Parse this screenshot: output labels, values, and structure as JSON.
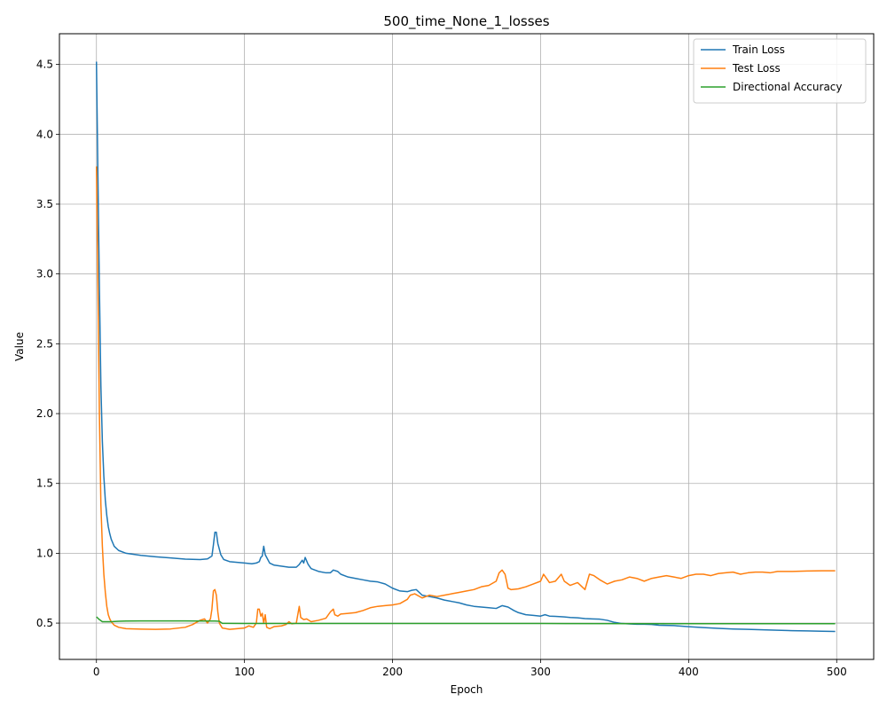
{
  "chart_data": {
    "type": "line",
    "title": "500_time_None_1_losses",
    "xlabel": "Epoch",
    "ylabel": "Value",
    "xlim": [
      -25,
      525
    ],
    "ylim": [
      0.24,
      4.72
    ],
    "x_ticks": [
      0,
      100,
      200,
      300,
      400,
      500
    ],
    "y_ticks": [
      0.5,
      1.0,
      1.5,
      2.0,
      2.5,
      3.0,
      3.5,
      4.0,
      4.5
    ],
    "grid": true,
    "legend_position": "top-right",
    "series": [
      {
        "name": "Train Loss",
        "color": "#1f77b4",
        "points": [
          [
            0,
            4.52
          ],
          [
            1,
            3.7
          ],
          [
            2,
            2.9
          ],
          [
            3,
            2.2
          ],
          [
            4,
            1.8
          ],
          [
            5,
            1.55
          ],
          [
            6,
            1.38
          ],
          [
            7,
            1.27
          ],
          [
            8,
            1.19
          ],
          [
            9,
            1.14
          ],
          [
            10,
            1.1
          ],
          [
            12,
            1.05
          ],
          [
            15,
            1.02
          ],
          [
            20,
            1.0
          ],
          [
            30,
            0.985
          ],
          [
            40,
            0.975
          ],
          [
            50,
            0.967
          ],
          [
            60,
            0.958
          ],
          [
            70,
            0.955
          ],
          [
            75,
            0.96
          ],
          [
            78,
            0.98
          ],
          [
            79,
            1.06
          ],
          [
            80,
            1.15
          ],
          [
            81,
            1.15
          ],
          [
            82,
            1.07
          ],
          [
            84,
            0.99
          ],
          [
            86,
            0.955
          ],
          [
            90,
            0.94
          ],
          [
            100,
            0.93
          ],
          [
            105,
            0.925
          ],
          [
            108,
            0.93
          ],
          [
            110,
            0.94
          ],
          [
            111,
            0.97
          ],
          [
            112,
            0.98
          ],
          [
            113,
            1.05
          ],
          [
            114,
            0.99
          ],
          [
            115,
            0.97
          ],
          [
            117,
            0.93
          ],
          [
            120,
            0.915
          ],
          [
            130,
            0.9
          ],
          [
            135,
            0.9
          ],
          [
            137,
            0.92
          ],
          [
            139,
            0.95
          ],
          [
            140,
            0.93
          ],
          [
            141,
            0.97
          ],
          [
            143,
            0.92
          ],
          [
            145,
            0.89
          ],
          [
            150,
            0.87
          ],
          [
            155,
            0.86
          ],
          [
            158,
            0.86
          ],
          [
            160,
            0.88
          ],
          [
            163,
            0.87
          ],
          [
            165,
            0.85
          ],
          [
            170,
            0.83
          ],
          [
            175,
            0.82
          ],
          [
            180,
            0.81
          ],
          [
            185,
            0.8
          ],
          [
            190,
            0.795
          ],
          [
            195,
            0.78
          ],
          [
            200,
            0.75
          ],
          [
            205,
            0.73
          ],
          [
            210,
            0.725
          ],
          [
            213,
            0.735
          ],
          [
            216,
            0.74
          ],
          [
            220,
            0.7
          ],
          [
            225,
            0.69
          ],
          [
            230,
            0.68
          ],
          [
            235,
            0.665
          ],
          [
            240,
            0.655
          ],
          [
            245,
            0.645
          ],
          [
            250,
            0.63
          ],
          [
            255,
            0.62
          ],
          [
            260,
            0.615
          ],
          [
            265,
            0.61
          ],
          [
            270,
            0.605
          ],
          [
            274,
            0.625
          ],
          [
            278,
            0.615
          ],
          [
            282,
            0.59
          ],
          [
            285,
            0.575
          ],
          [
            290,
            0.56
          ],
          [
            295,
            0.555
          ],
          [
            300,
            0.55
          ],
          [
            303,
            0.56
          ],
          [
            306,
            0.55
          ],
          [
            310,
            0.548
          ],
          [
            315,
            0.545
          ],
          [
            320,
            0.54
          ],
          [
            325,
            0.538
          ],
          [
            330,
            0.532
          ],
          [
            335,
            0.53
          ],
          [
            340,
            0.528
          ],
          [
            345,
            0.52
          ],
          [
            350,
            0.505
          ],
          [
            355,
            0.497
          ],
          [
            360,
            0.494
          ],
          [
            365,
            0.492
          ],
          [
            370,
            0.492
          ],
          [
            375,
            0.49
          ],
          [
            380,
            0.485
          ],
          [
            390,
            0.482
          ],
          [
            395,
            0.478
          ],
          [
            400,
            0.474
          ],
          [
            410,
            0.468
          ],
          [
            420,
            0.462
          ],
          [
            430,
            0.458
          ],
          [
            440,
            0.455
          ],
          [
            450,
            0.452
          ],
          [
            460,
            0.449
          ],
          [
            470,
            0.446
          ],
          [
            480,
            0.444
          ],
          [
            490,
            0.442
          ],
          [
            499,
            0.44
          ]
        ]
      },
      {
        "name": "Test Loss",
        "color": "#ff7f0e",
        "points": [
          [
            0,
            3.77
          ],
          [
            1,
            2.9
          ],
          [
            2,
            2.0
          ],
          [
            3,
            1.35
          ],
          [
            4,
            1.05
          ],
          [
            5,
            0.85
          ],
          [
            6,
            0.72
          ],
          [
            7,
            0.62
          ],
          [
            8,
            0.56
          ],
          [
            9,
            0.53
          ],
          [
            10,
            0.51
          ],
          [
            12,
            0.485
          ],
          [
            15,
            0.47
          ],
          [
            20,
            0.46
          ],
          [
            30,
            0.457
          ],
          [
            40,
            0.455
          ],
          [
            50,
            0.458
          ],
          [
            60,
            0.47
          ],
          [
            65,
            0.49
          ],
          [
            70,
            0.52
          ],
          [
            73,
            0.53
          ],
          [
            75,
            0.5
          ],
          [
            77,
            0.53
          ],
          [
            78,
            0.6
          ],
          [
            79,
            0.73
          ],
          [
            80,
            0.74
          ],
          [
            81,
            0.7
          ],
          [
            82,
            0.58
          ],
          [
            83,
            0.5
          ],
          [
            85,
            0.465
          ],
          [
            90,
            0.455
          ],
          [
            95,
            0.46
          ],
          [
            100,
            0.465
          ],
          [
            103,
            0.48
          ],
          [
            106,
            0.47
          ],
          [
            108,
            0.5
          ],
          [
            109,
            0.6
          ],
          [
            110,
            0.6
          ],
          [
            111,
            0.55
          ],
          [
            112,
            0.57
          ],
          [
            113,
            0.5
          ],
          [
            114,
            0.56
          ],
          [
            115,
            0.47
          ],
          [
            117,
            0.46
          ],
          [
            120,
            0.475
          ],
          [
            125,
            0.48
          ],
          [
            128,
            0.49
          ],
          [
            130,
            0.51
          ],
          [
            132,
            0.495
          ],
          [
            135,
            0.5
          ],
          [
            137,
            0.62
          ],
          [
            138,
            0.54
          ],
          [
            140,
            0.525
          ],
          [
            142,
            0.53
          ],
          [
            145,
            0.51
          ],
          [
            150,
            0.52
          ],
          [
            155,
            0.535
          ],
          [
            158,
            0.58
          ],
          [
            160,
            0.6
          ],
          [
            161,
            0.56
          ],
          [
            163,
            0.55
          ],
          [
            165,
            0.565
          ],
          [
            170,
            0.57
          ],
          [
            175,
            0.575
          ],
          [
            180,
            0.59
          ],
          [
            185,
            0.61
          ],
          [
            190,
            0.62
          ],
          [
            195,
            0.625
          ],
          [
            200,
            0.63
          ],
          [
            205,
            0.64
          ],
          [
            210,
            0.67
          ],
          [
            212,
            0.7
          ],
          [
            215,
            0.71
          ],
          [
            220,
            0.68
          ],
          [
            225,
            0.7
          ],
          [
            230,
            0.69
          ],
          [
            235,
            0.7
          ],
          [
            240,
            0.71
          ],
          [
            245,
            0.72
          ],
          [
            250,
            0.73
          ],
          [
            255,
            0.74
          ],
          [
            260,
            0.76
          ],
          [
            265,
            0.77
          ],
          [
            270,
            0.8
          ],
          [
            272,
            0.86
          ],
          [
            274,
            0.88
          ],
          [
            276,
            0.85
          ],
          [
            278,
            0.75
          ],
          [
            280,
            0.74
          ],
          [
            285,
            0.745
          ],
          [
            290,
            0.76
          ],
          [
            295,
            0.78
          ],
          [
            300,
            0.8
          ],
          [
            302,
            0.85
          ],
          [
            304,
            0.82
          ],
          [
            306,
            0.79
          ],
          [
            310,
            0.8
          ],
          [
            314,
            0.85
          ],
          [
            316,
            0.8
          ],
          [
            320,
            0.77
          ],
          [
            325,
            0.79
          ],
          [
            330,
            0.74
          ],
          [
            333,
            0.85
          ],
          [
            336,
            0.84
          ],
          [
            340,
            0.81
          ],
          [
            345,
            0.78
          ],
          [
            350,
            0.8
          ],
          [
            355,
            0.81
          ],
          [
            360,
            0.83
          ],
          [
            365,
            0.82
          ],
          [
            370,
            0.8
          ],
          [
            375,
            0.82
          ],
          [
            380,
            0.83
          ],
          [
            385,
            0.84
          ],
          [
            390,
            0.83
          ],
          [
            395,
            0.82
          ],
          [
            400,
            0.84
          ],
          [
            405,
            0.85
          ],
          [
            410,
            0.85
          ],
          [
            415,
            0.84
          ],
          [
            420,
            0.855
          ],
          [
            425,
            0.86
          ],
          [
            430,
            0.865
          ],
          [
            435,
            0.85
          ],
          [
            440,
            0.86
          ],
          [
            445,
            0.865
          ],
          [
            450,
            0.865
          ],
          [
            455,
            0.86
          ],
          [
            460,
            0.87
          ],
          [
            470,
            0.87
          ],
          [
            480,
            0.873
          ],
          [
            490,
            0.875
          ],
          [
            499,
            0.875
          ]
        ]
      },
      {
        "name": "Directional Accuracy",
        "color": "#2ca02c",
        "points": [
          [
            0,
            0.545
          ],
          [
            2,
            0.525
          ],
          [
            4,
            0.51
          ],
          [
            10,
            0.51
          ],
          [
            15,
            0.513
          ],
          [
            20,
            0.515
          ],
          [
            30,
            0.516
          ],
          [
            40,
            0.516
          ],
          [
            60,
            0.516
          ],
          [
            70,
            0.515
          ],
          [
            80,
            0.515
          ],
          [
            83,
            0.513
          ],
          [
            85,
            0.498
          ],
          [
            100,
            0.497
          ],
          [
            200,
            0.497
          ],
          [
            300,
            0.497
          ],
          [
            400,
            0.496
          ],
          [
            499,
            0.496
          ]
        ]
      }
    ]
  }
}
